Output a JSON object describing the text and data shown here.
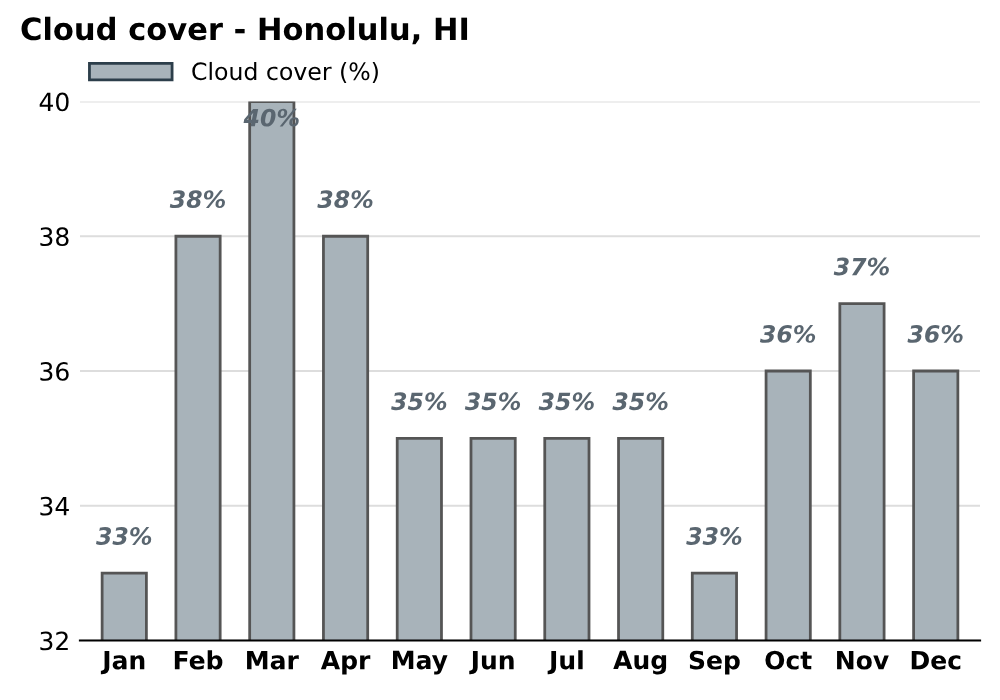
{
  "chart_data": {
    "type": "bar",
    "title": "Cloud cover - Honolulu, HI",
    "categories": [
      "Jan",
      "Feb",
      "Mar",
      "Apr",
      "May",
      "Jun",
      "Jul",
      "Aug",
      "Sep",
      "Oct",
      "Nov",
      "Dec"
    ],
    "series": [
      {
        "name": "Cloud cover (%)",
        "color": "#a8b3ba",
        "values": [
          33,
          38,
          40,
          38,
          35,
          35,
          35,
          35,
          33,
          36,
          37,
          36
        ],
        "value_labels": [
          "33%",
          "38%",
          "40%",
          "38%",
          "35%",
          "35%",
          "35%",
          "35%",
          "33%",
          "36%",
          "37%",
          "36%"
        ]
      }
    ],
    "ylim": [
      32,
      40
    ],
    "yticks": [
      32,
      34,
      36,
      38,
      40
    ],
    "grid": "y",
    "legend": "top left"
  }
}
